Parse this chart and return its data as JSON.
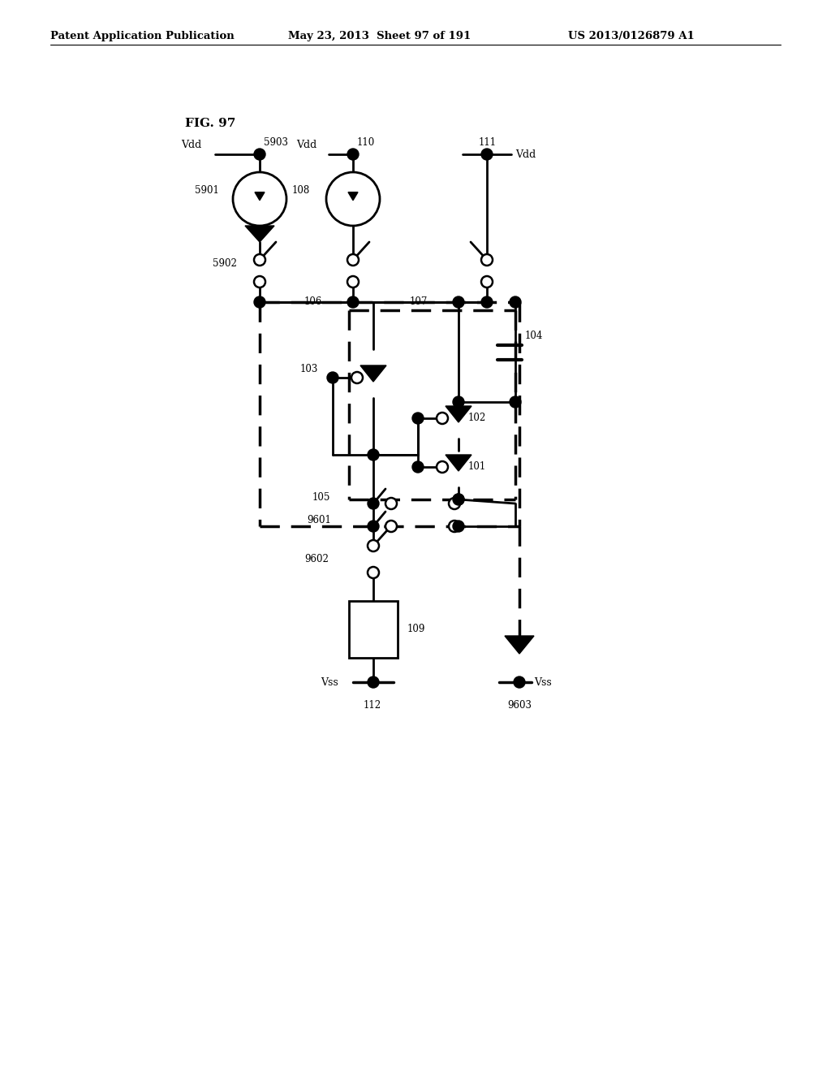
{
  "title": "FIG. 97",
  "header_left": "Patent Application Publication",
  "header_mid": "May 23, 2013  Sheet 97 of 191",
  "header_right": "US 2013/0126879 A1",
  "background_color": "#ffffff",
  "line_color": "#000000"
}
